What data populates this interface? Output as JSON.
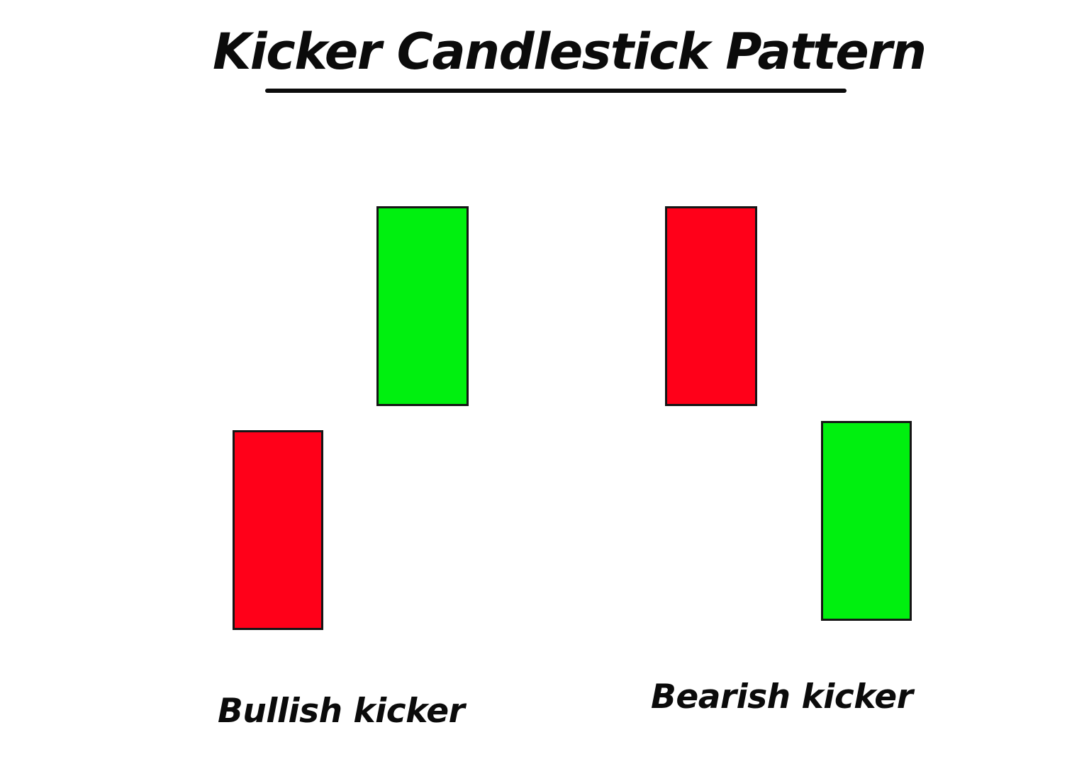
{
  "title": "Kicker Candlestick Pattern",
  "colors": {
    "bullish": "#00f00f",
    "bearish": "#ff0019",
    "outline": "#151515",
    "text": "#0b0b0b"
  },
  "patterns": [
    {
      "label": "Bullish kicker",
      "candles": [
        {
          "kind": "bearish"
        },
        {
          "kind": "bullish"
        }
      ]
    },
    {
      "label": "Bearish kicker",
      "candles": [
        {
          "kind": "bearish"
        },
        {
          "kind": "bullish"
        }
      ]
    }
  ]
}
